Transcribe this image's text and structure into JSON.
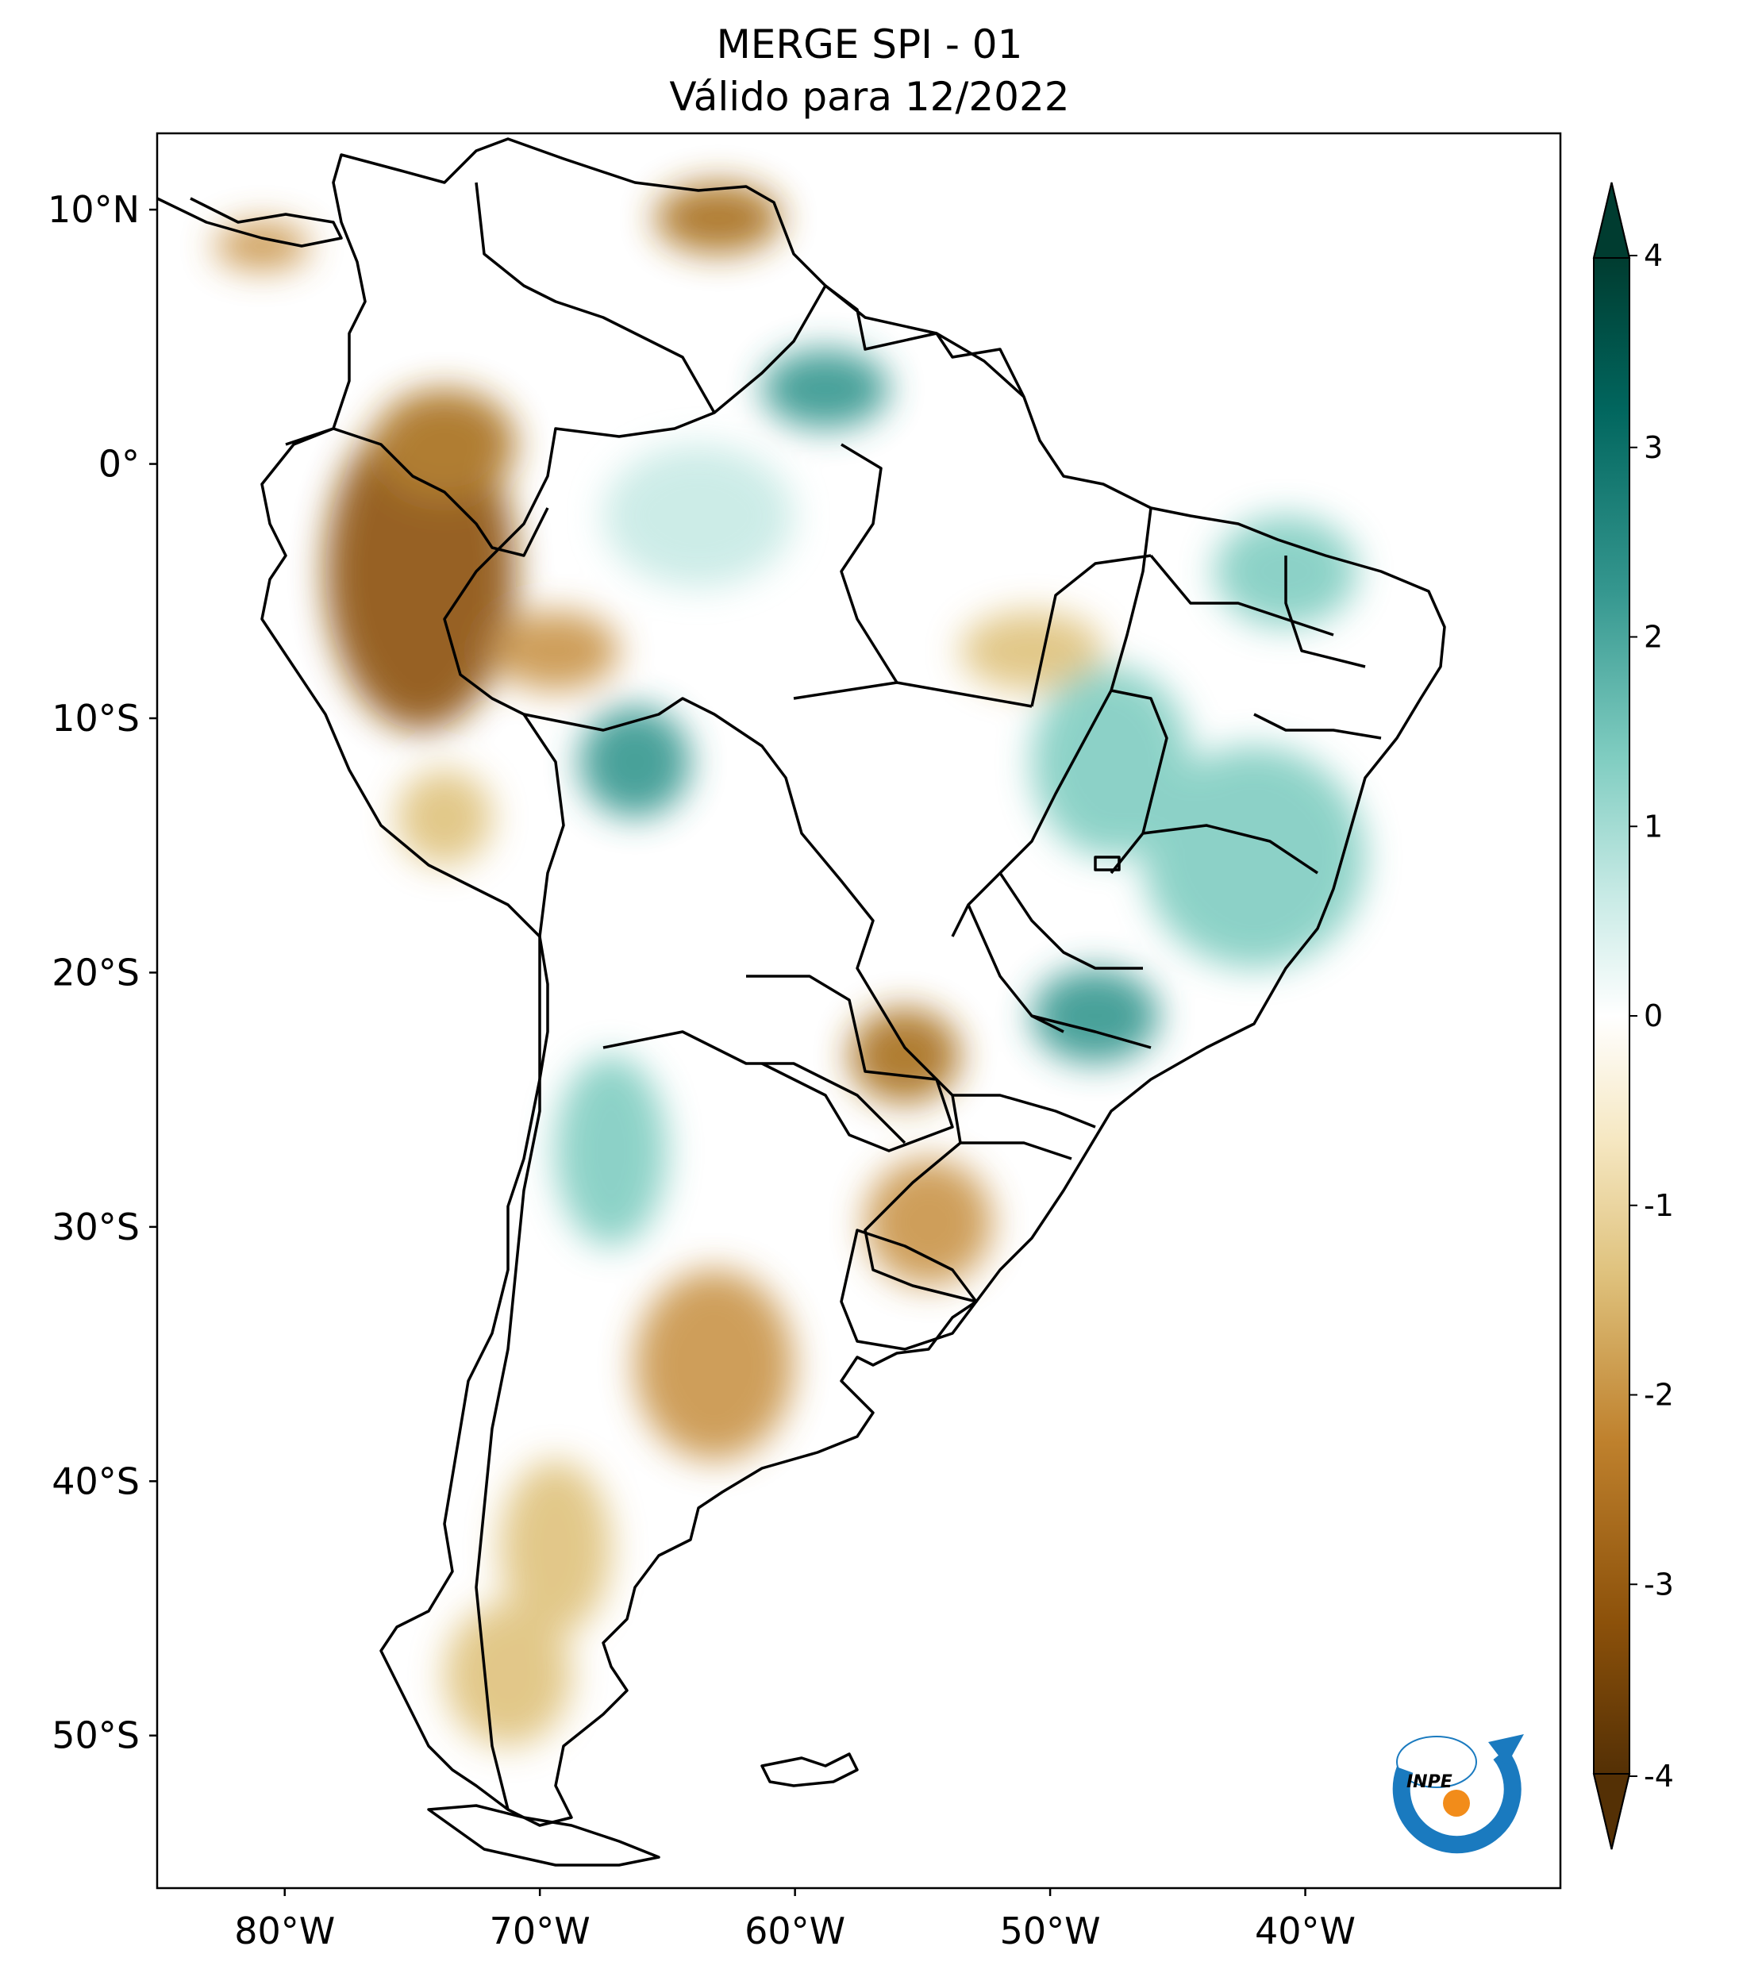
{
  "title": {
    "line1": "MERGE   SPI - 01",
    "line2": "Válido para 12/2022"
  },
  "map": {
    "extent": {
      "lon_min": -85,
      "lon_max": -30,
      "lat_min": -56,
      "lat_max": 13
    },
    "lat_labels": [
      {
        "lat": 10,
        "label": "10°N"
      },
      {
        "lat": 0,
        "label": "0°"
      },
      {
        "lat": -10,
        "label": "10°S"
      },
      {
        "lat": -20,
        "label": "20°S"
      },
      {
        "lat": -30,
        "label": "30°S"
      },
      {
        "lat": -40,
        "label": "40°S"
      },
      {
        "lat": -50,
        "label": "50°S"
      }
    ],
    "lon_labels": [
      {
        "lon": -80,
        "label": "80°W"
      },
      {
        "lon": -70,
        "label": "70°W"
      },
      {
        "lon": -60,
        "label": "60°W"
      },
      {
        "lon": -50,
        "label": "50°W"
      },
      {
        "lon": -40,
        "label": "40°W"
      }
    ]
  },
  "colorbar": {
    "min": -4,
    "max": 4,
    "ticks": [
      {
        "value": 4,
        "label": "4"
      },
      {
        "value": 3,
        "label": "3"
      },
      {
        "value": 2,
        "label": "2"
      },
      {
        "value": 1,
        "label": "1"
      },
      {
        "value": 0,
        "label": "0"
      },
      {
        "value": -1,
        "label": "-1"
      },
      {
        "value": -2,
        "label": "-2"
      },
      {
        "value": -3,
        "label": "-3"
      },
      {
        "value": -4,
        "label": "-4"
      }
    ],
    "colors": {
      "wet_extreme": "#003c30",
      "wet_strong": "#01665e",
      "wet_moderate": "#35978f",
      "wet_mild": "#80cdc1",
      "wet_light": "#c7eae5",
      "neutral": "#ffffff",
      "dry_light": "#f6e8c3",
      "dry_mild": "#dfc27d",
      "dry_moderate": "#bf812d",
      "dry_strong": "#8c510a",
      "dry_extreme": "#543005"
    }
  },
  "logo": {
    "text": "INPE",
    "arc_color": "#1a7abf",
    "dot_color": "#f28c1a"
  }
}
